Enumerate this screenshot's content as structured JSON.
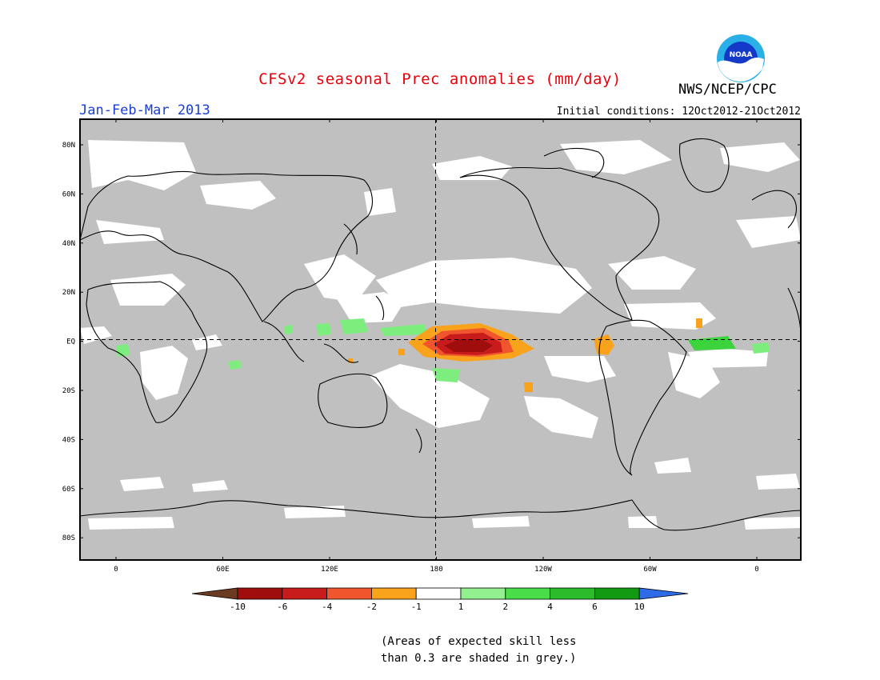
{
  "title": "CFSv2 seasonal Prec anomalies (mm/day)",
  "season": "Jan-Feb-Mar 2013",
  "initial_conditions": "Initial conditions: 12Oct2012-21Oct2012",
  "agency": "NWS/NCEP/CPC",
  "logo": {
    "icon": "noaa-logo",
    "text": "NOAA"
  },
  "note_lines": [
    "(Areas of expected skill less",
    "than 0.3 are shaded in grey.)"
  ],
  "map": {
    "projection": "cylindrical",
    "lat_ticks": [
      "80N",
      "60N",
      "40N",
      "20N",
      "EQ",
      "20S",
      "40S",
      "60S",
      "80S"
    ],
    "lon_ticks": [
      "0",
      "60E",
      "120E",
      "180",
      "120W",
      "60W",
      "0"
    ],
    "reference_lines": [
      "equator",
      "dateline"
    ],
    "fill_colors": {
      "low_skill": "#c0c0c0",
      "no_signal": "#ffffff",
      "wet_light": "#7dee7d",
      "wet": "#3cd43c",
      "dry": "#f9a21b",
      "dry_strong": "#f1552d",
      "dry_very": "#c81c1c",
      "dry_extreme": "#a00d0d"
    },
    "land_outline": "#000000"
  },
  "colorbar": {
    "labels": [
      "-10",
      "-6",
      "-4",
      "-2",
      "-1",
      "1",
      "2",
      "4",
      "6",
      "10"
    ],
    "colors": [
      "#6b3a20",
      "#a00d0d",
      "#c81c1c",
      "#f1552d",
      "#f9a21b",
      "#ffffff",
      "#93f08f",
      "#49dd49",
      "#2bbb2b",
      "#129a12",
      "#2f6ae8"
    ]
  }
}
